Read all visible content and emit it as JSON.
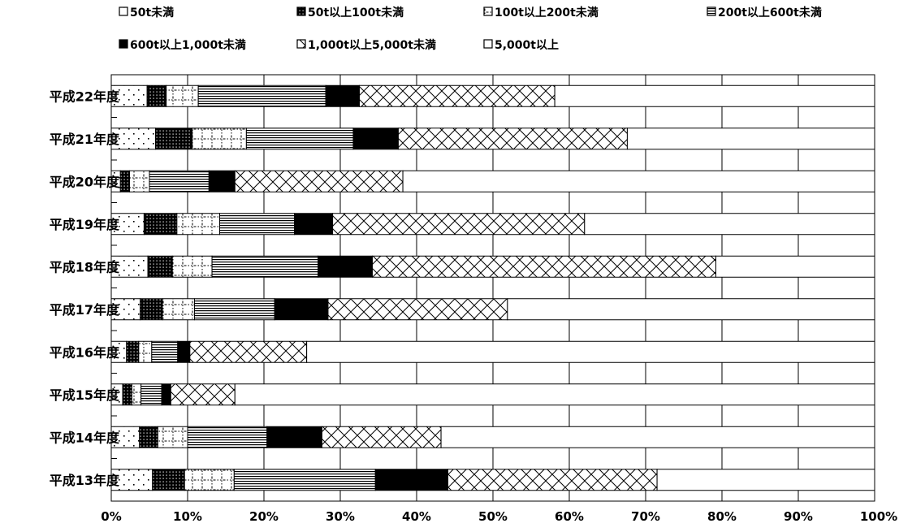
{
  "chart_data": {
    "type": "bar",
    "orientation": "horizontal",
    "stacked": "percent",
    "title": "",
    "xlabel": "",
    "ylabel": "",
    "xlim": [
      0,
      100
    ],
    "grid": true,
    "legend_position": "top",
    "x_ticks": [
      "0%",
      "10%",
      "20%",
      "30%",
      "40%",
      "50%",
      "60%",
      "70%",
      "80%",
      "90%",
      "100%"
    ],
    "categories": [
      "平成22年度",
      "平成21年度",
      "平成20年度",
      "平成19年度",
      "平成18年度",
      "平成17年度",
      "平成16年度",
      "平成15年度",
      "平成14年度",
      "平成13年度"
    ],
    "series": [
      {
        "name": "50t未満",
        "pattern": "dots",
        "values": [
          4.7,
          5.8,
          1.2,
          4.3,
          4.8,
          3.8,
          2.0,
          1.5,
          3.7,
          5.4
        ]
      },
      {
        "name": "50t以上100t未満",
        "pattern": "dense-dots",
        "values": [
          2.5,
          4.8,
          1.2,
          4.3,
          3.2,
          2.9,
          1.6,
          1.2,
          2.4,
          4.2
        ]
      },
      {
        "name": "100t以上200t未満",
        "pattern": "dotted-grid",
        "values": [
          4.2,
          7.1,
          2.6,
          5.6,
          5.2,
          4.2,
          1.7,
          1.2,
          3.9,
          6.5
        ]
      },
      {
        "name": "200t以上600t未満",
        "pattern": "horizontal-lines",
        "values": [
          16.7,
          14.0,
          7.8,
          9.8,
          13.9,
          10.5,
          3.4,
          2.7,
          10.4,
          18.5
        ]
      },
      {
        "name": "600t以上1,000t未満",
        "pattern": "solid-black",
        "values": [
          4.4,
          5.9,
          3.4,
          5.0,
          7.1,
          7.0,
          1.6,
          1.2,
          7.2,
          9.5
        ]
      },
      {
        "name": "1,000t以上5,000t未満",
        "pattern": "cross-hatch",
        "values": [
          25.6,
          30.0,
          22.0,
          33.0,
          45.0,
          23.5,
          15.3,
          8.4,
          15.6,
          27.4
        ]
      },
      {
        "name": "5,000t以上",
        "pattern": "white",
        "values": [
          41.9,
          32.4,
          61.8,
          38.0,
          20.8,
          48.1,
          74.4,
          83.8,
          56.8,
          28.5
        ]
      }
    ]
  }
}
